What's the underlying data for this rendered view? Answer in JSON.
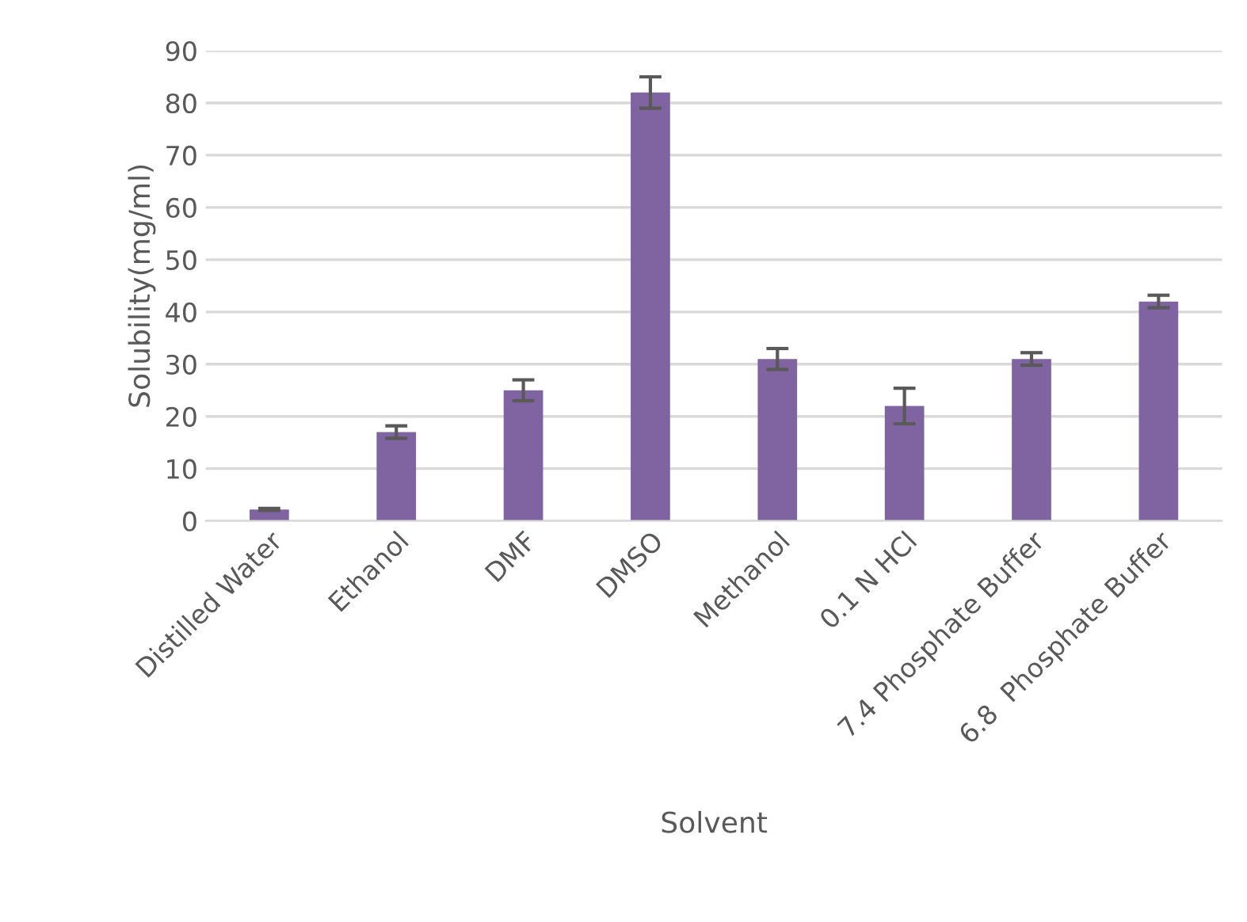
{
  "chart_data": {
    "type": "bar",
    "xlabel": "Solvent",
    "ylabel": "Solubility(mg/ml)",
    "categories": [
      "Distilled Water",
      "Ethanol",
      "DMF",
      "DMSO",
      "Methanol",
      "0.1 N HCl",
      "7.4 Phosphate Buffer",
      "6.8  Phosphate Buffer"
    ],
    "values": [
      2.2,
      17,
      25,
      82,
      31,
      22,
      31,
      42
    ],
    "errors": [
      0.2,
      1.2,
      2,
      3,
      2,
      3.4,
      1.2,
      1.2
    ],
    "color": "#8064a2",
    "ylim": [
      0,
      90
    ],
    "yticks": [
      0,
      10,
      20,
      30,
      40,
      50,
      60,
      70,
      80,
      90
    ],
    "grid": "y",
    "legend": false
  }
}
